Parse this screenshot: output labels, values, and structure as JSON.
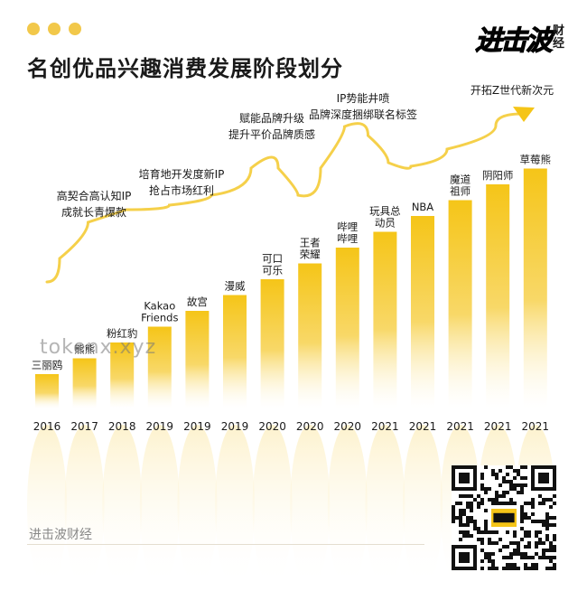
{
  "header": {
    "title": "名创优品兴趣消费发展阶段划分",
    "brand_main": "进击波",
    "brand_sub": "财经"
  },
  "watermark": "tokenx.xyz",
  "footer": {
    "source": "进击波财经"
  },
  "colors": {
    "accent": "#f5c518",
    "bar_top": "#f5c518",
    "dot": "#f2c84a"
  },
  "chart_data": {
    "type": "bar",
    "categories": [
      "三丽鸥",
      "熊熊",
      "粉红豹",
      "Kakao Friends",
      "故宫",
      "漫威",
      "可口可乐",
      "王者荣耀",
      "哔哩哔哩",
      "玩具总动员",
      "NBA",
      "魔道祖师",
      "阴阳师",
      "草莓熊"
    ],
    "years": [
      "2016",
      "2017",
      "2018",
      "2019",
      "2019",
      "2019",
      "2020",
      "2020",
      "2020",
      "2021",
      "2021",
      "2021",
      "2021",
      "2021"
    ],
    "values": [
      1,
      2,
      3,
      4,
      5,
      6,
      7,
      8,
      9,
      10,
      11,
      12,
      13,
      14
    ],
    "stage_annotations": [
      {
        "lines": [
          "高契合高认知IP",
          "成就长青爆款"
        ]
      },
      {
        "lines": [
          "培育地开发度新IP",
          "抢占市场红利"
        ]
      },
      {
        "lines": [
          "赋能品牌升级",
          "提升平价品牌质感"
        ]
      },
      {
        "lines": [
          "IP势能井喷",
          "品牌深度捆绑联名标签"
        ]
      },
      {
        "lines": [
          "开拓Z世代新次元"
        ]
      }
    ]
  }
}
